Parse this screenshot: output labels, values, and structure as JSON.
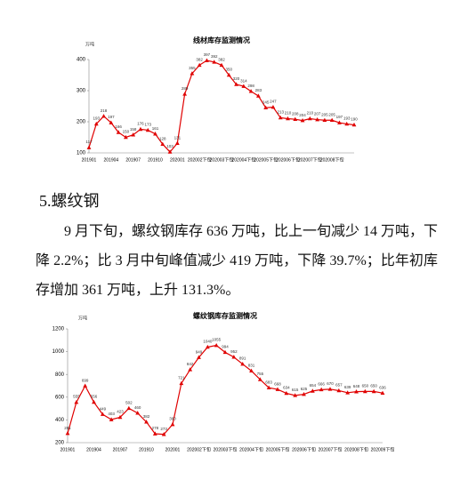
{
  "chart_data": [
    {
      "type": "line",
      "title": "线材库存监测情况",
      "y_unit": "万吨",
      "color": "#e00000",
      "grid": false,
      "categories": [
        "201901",
        null,
        null,
        "201904",
        null,
        null,
        "201907",
        null,
        null,
        "201910",
        null,
        null,
        "202001",
        null,
        null,
        "202002下旬",
        null,
        null,
        "202003下旬",
        null,
        null,
        "202004下旬",
        null,
        null,
        "202005下旬",
        null,
        null,
        "202006下旬",
        null,
        null,
        "202007下旬",
        null,
        null,
        "202008下旬",
        null,
        null,
        null
      ],
      "values": [
        117,
        193,
        218,
        197,
        166,
        150,
        158,
        176,
        173,
        161,
        128,
        103,
        131,
        289,
        355,
        382,
        397,
        392,
        382,
        350,
        320,
        314,
        298,
        283,
        245,
        247,
        213,
        210,
        208,
        204,
        210,
        207,
        205,
        205,
        197,
        193,
        190
      ],
      "ylim": [
        100,
        400
      ],
      "yticks": [
        100,
        200,
        300,
        400
      ]
    },
    {
      "type": "line",
      "title": "螺纹钢库存监测情况",
      "y_unit": "万吨",
      "color": "#e00000",
      "grid": false,
      "categories": [
        "201901",
        null,
        null,
        "201904",
        null,
        null,
        "201907",
        null,
        null,
        "201910",
        null,
        null,
        "202001",
        null,
        null,
        "202002下旬",
        null,
        null,
        "202003下旬",
        null,
        null,
        "202004下旬",
        null,
        null,
        "202005下旬",
        null,
        null,
        "202006下旬",
        null,
        null,
        "202007下旬",
        null,
        null,
        "202008下旬",
        null,
        null,
        "202009下旬"
      ],
      "values": [
        281,
        555,
        699,
        556,
        449,
        403,
        423,
        502,
        460,
        382,
        278,
        273,
        360,
        721,
        842,
        949,
        1040,
        1055,
        994,
        952,
        891,
        831,
        755,
        683,
        668,
        634,
        615,
        625,
        654,
        666,
        670,
        657,
        639,
        648,
        650,
        650,
        636
      ],
      "ylim": [
        200,
        1200
      ],
      "yticks": [
        200,
        400,
        600,
        800,
        1000,
        1200
      ]
    }
  ],
  "document": {
    "heading": "5.螺纹钢",
    "paragraph": "9 月下旬，螺纹钢库存 636 万吨，比上一旬减少 14 万吨，下降 2.2%；比 3 月中旬峰值减少 419 万吨，下降 39.7%；比年初库存增加 361 万吨，上升 131.3%。"
  }
}
